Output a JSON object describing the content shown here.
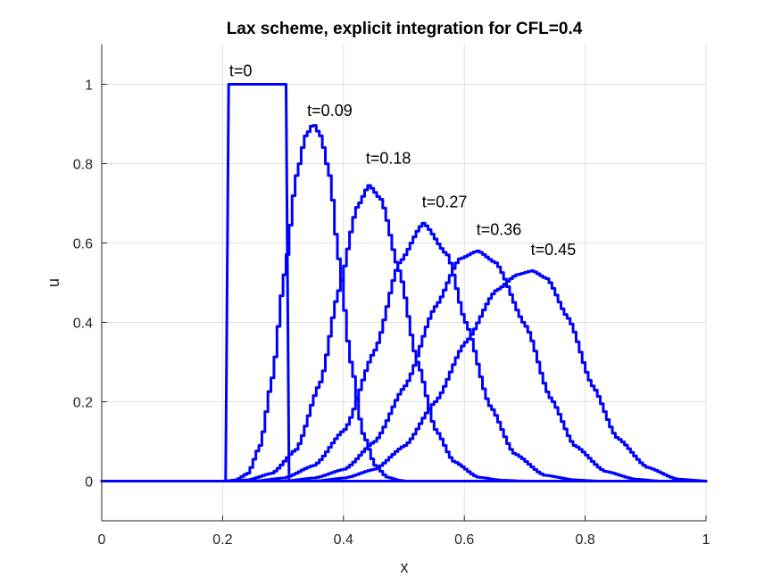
{
  "chart_data": {
    "type": "line",
    "title": "Lax scheme, explicit integration for CFL=0.4",
    "xlabel": "x",
    "ylabel": "u",
    "xlim": [
      0,
      1
    ],
    "ylim": [
      -0.1,
      1.1
    ],
    "grid": true,
    "line_color": "#0000ff",
    "x_ticks": [
      {
        "value": 0,
        "label": "0"
      },
      {
        "value": 0.2,
        "label": "0.2"
      },
      {
        "value": 0.4,
        "label": "0.4"
      },
      {
        "value": 0.6,
        "label": "0.6"
      },
      {
        "value": 0.8,
        "label": "0.8"
      },
      {
        "value": 1,
        "label": "1"
      }
    ],
    "y_ticks": [
      {
        "value": 0,
        "label": "0"
      },
      {
        "value": 0.2,
        "label": "0.2"
      },
      {
        "value": 0.4,
        "label": "0.4"
      },
      {
        "value": 0.6,
        "label": "0.6"
      },
      {
        "value": 0.8,
        "label": "0.8"
      },
      {
        "value": 1,
        "label": "1"
      }
    ],
    "series": [
      {
        "name": "t=0",
        "label_x": 0.211,
        "label_y": 1.02,
        "x": [
          0,
          0.2,
          0.205,
          0.21,
          0.305,
          0.31,
          0.315,
          1
        ],
        "y": [
          0,
          0,
          0,
          1,
          1,
          0,
          0,
          0
        ]
      },
      {
        "name": "t=0.09",
        "label_x": 0.34,
        "label_y": 0.92,
        "x": [
          0,
          0.2,
          0.22,
          0.24,
          0.26,
          0.28,
          0.3,
          0.32,
          0.335,
          0.348,
          0.36,
          0.375,
          0.39,
          0.41,
          0.43,
          0.45,
          0.47,
          0.49,
          0.5,
          1
        ],
        "y": [
          0,
          0,
          0.003,
          0.02,
          0.09,
          0.26,
          0.52,
          0.77,
          0.87,
          0.9,
          0.87,
          0.77,
          0.56,
          0.3,
          0.12,
          0.04,
          0.01,
          0.002,
          0,
          0
        ]
      },
      {
        "name": "t=0.18",
        "label_x": 0.437,
        "label_y": 0.8,
        "x": [
          0,
          0.2,
          0.24,
          0.28,
          0.32,
          0.36,
          0.39,
          0.42,
          0.44,
          0.46,
          0.49,
          0.52,
          0.55,
          0.58,
          0.62,
          0.66,
          0.7,
          1
        ],
        "y": [
          0,
          0,
          0.003,
          0.02,
          0.08,
          0.25,
          0.48,
          0.69,
          0.745,
          0.71,
          0.53,
          0.3,
          0.13,
          0.05,
          0.01,
          0.002,
          0,
          0
        ]
      },
      {
        "name": "t=0.27",
        "label_x": 0.53,
        "label_y": 0.69,
        "x": [
          0,
          0.25,
          0.3,
          0.35,
          0.4,
          0.45,
          0.49,
          0.53,
          0.57,
          0.6,
          0.64,
          0.68,
          0.73,
          0.78,
          0.82,
          1
        ],
        "y": [
          0,
          0,
          0.008,
          0.04,
          0.13,
          0.33,
          0.55,
          0.65,
          0.57,
          0.4,
          0.19,
          0.07,
          0.015,
          0.003,
          0,
          0
        ]
      },
      {
        "name": "t=0.36",
        "label_x": 0.62,
        "label_y": 0.62,
        "x": [
          0,
          0.3,
          0.35,
          0.4,
          0.45,
          0.5,
          0.55,
          0.59,
          0.62,
          0.65,
          0.7,
          0.74,
          0.78,
          0.83,
          0.88,
          0.92,
          1
        ],
        "y": [
          0,
          0,
          0.008,
          0.03,
          0.1,
          0.24,
          0.44,
          0.56,
          0.58,
          0.55,
          0.39,
          0.21,
          0.09,
          0.025,
          0.005,
          0,
          0
        ]
      },
      {
        "name": "t=0.45",
        "label_x": 0.71,
        "label_y": 0.57,
        "x": [
          0,
          0.35,
          0.4,
          0.45,
          0.5,
          0.55,
          0.6,
          0.65,
          0.685,
          0.71,
          0.735,
          0.77,
          0.81,
          0.85,
          0.9,
          0.95,
          1
        ],
        "y": [
          0,
          0,
          0.008,
          0.03,
          0.09,
          0.2,
          0.35,
          0.48,
          0.52,
          0.53,
          0.51,
          0.41,
          0.24,
          0.11,
          0.035,
          0.005,
          0
        ]
      }
    ]
  }
}
